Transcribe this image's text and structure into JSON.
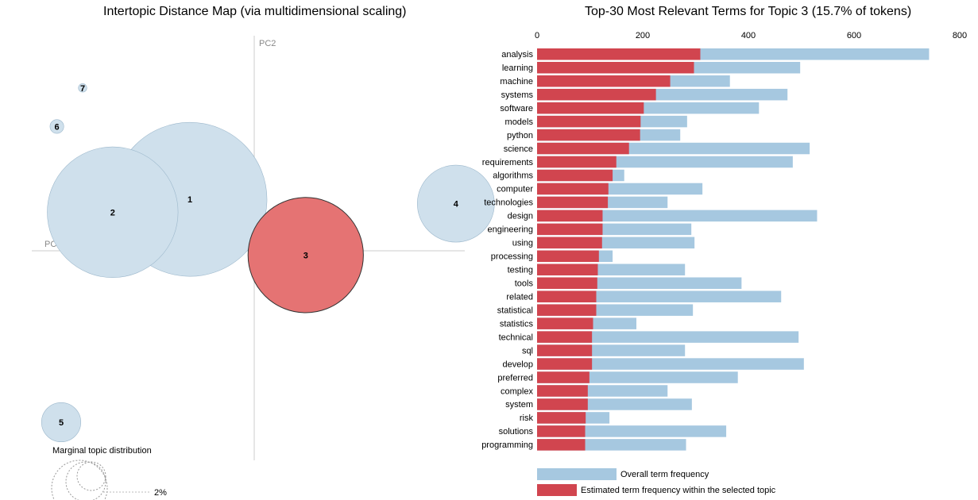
{
  "left_title": "Intertopic Distance Map (via multidimensional scaling)",
  "right_title": "Top-30 Most Relevant Terms for Topic 3 (15.7% of tokens)",
  "axes": {
    "pc1": "PC1",
    "pc2": "PC2"
  },
  "marginal": {
    "label": "Marginal topic distribution",
    "pct": "2%"
  },
  "colors": {
    "overall": "#a6c8e0",
    "topic": "#d1454f",
    "bubble": "#cfe0ec",
    "bubble_selected": "#e57373"
  },
  "selected_topic": 3,
  "chart_data": [
    {
      "type": "scatter",
      "title": "Intertopic Distance Map (via multidimensional scaling)",
      "xlabel": "PC1",
      "ylabel": "PC2",
      "topics": [
        {
          "label": "1",
          "x": -0.15,
          "y": 0.12,
          "size": 1.0
        },
        {
          "label": "2",
          "x": -0.33,
          "y": 0.09,
          "size": 0.72
        },
        {
          "label": "3",
          "x": 0.12,
          "y": -0.01,
          "size": 0.56
        },
        {
          "label": "4",
          "x": 0.47,
          "y": 0.11,
          "size": 0.25
        },
        {
          "label": "5",
          "x": -0.45,
          "y": -0.4,
          "size": 0.065
        },
        {
          "label": "6",
          "x": -0.46,
          "y": 0.29,
          "size": 0.008
        },
        {
          "label": "7",
          "x": -0.4,
          "y": 0.38,
          "size": 0.003
        }
      ]
    },
    {
      "type": "bar",
      "title": "Top-30 Most Relevant Terms for Topic 3 (15.7% of tokens)",
      "xlim": [
        0,
        800
      ],
      "ticks": [
        "0",
        "200",
        "400",
        "600",
        "800"
      ],
      "categories": [
        "analysis",
        "learning",
        "machine",
        "systems",
        "software",
        "models",
        "python",
        "science",
        "requirements",
        "algorithms",
        "computer",
        "technologies",
        "design",
        "engineering",
        "using",
        "processing",
        "testing",
        "tools",
        "related",
        "statistical",
        "statistics",
        "technical",
        "sql",
        "develop",
        "preferred",
        "complex",
        "system",
        "risk",
        "solutions",
        "programming"
      ],
      "series": [
        {
          "name": "Overall term frequency",
          "values": [
            742,
            498,
            365,
            474,
            420,
            284,
            271,
            516,
            484,
            165,
            313,
            247,
            530,
            292,
            298,
            143,
            280,
            387,
            462,
            295,
            188,
            495,
            280,
            505,
            380,
            247,
            293,
            137,
            358,
            282
          ]
        },
        {
          "name": "Estimated term frequency within the selected topic",
          "values": [
            309,
            297,
            252,
            225,
            202,
            196,
            195,
            174,
            150,
            143,
            135,
            134,
            124,
            124,
            123,
            117,
            115,
            114,
            112,
            112,
            106,
            104,
            104,
            104,
            99,
            96,
            96,
            92,
            91,
            91
          ]
        }
      ]
    }
  ]
}
